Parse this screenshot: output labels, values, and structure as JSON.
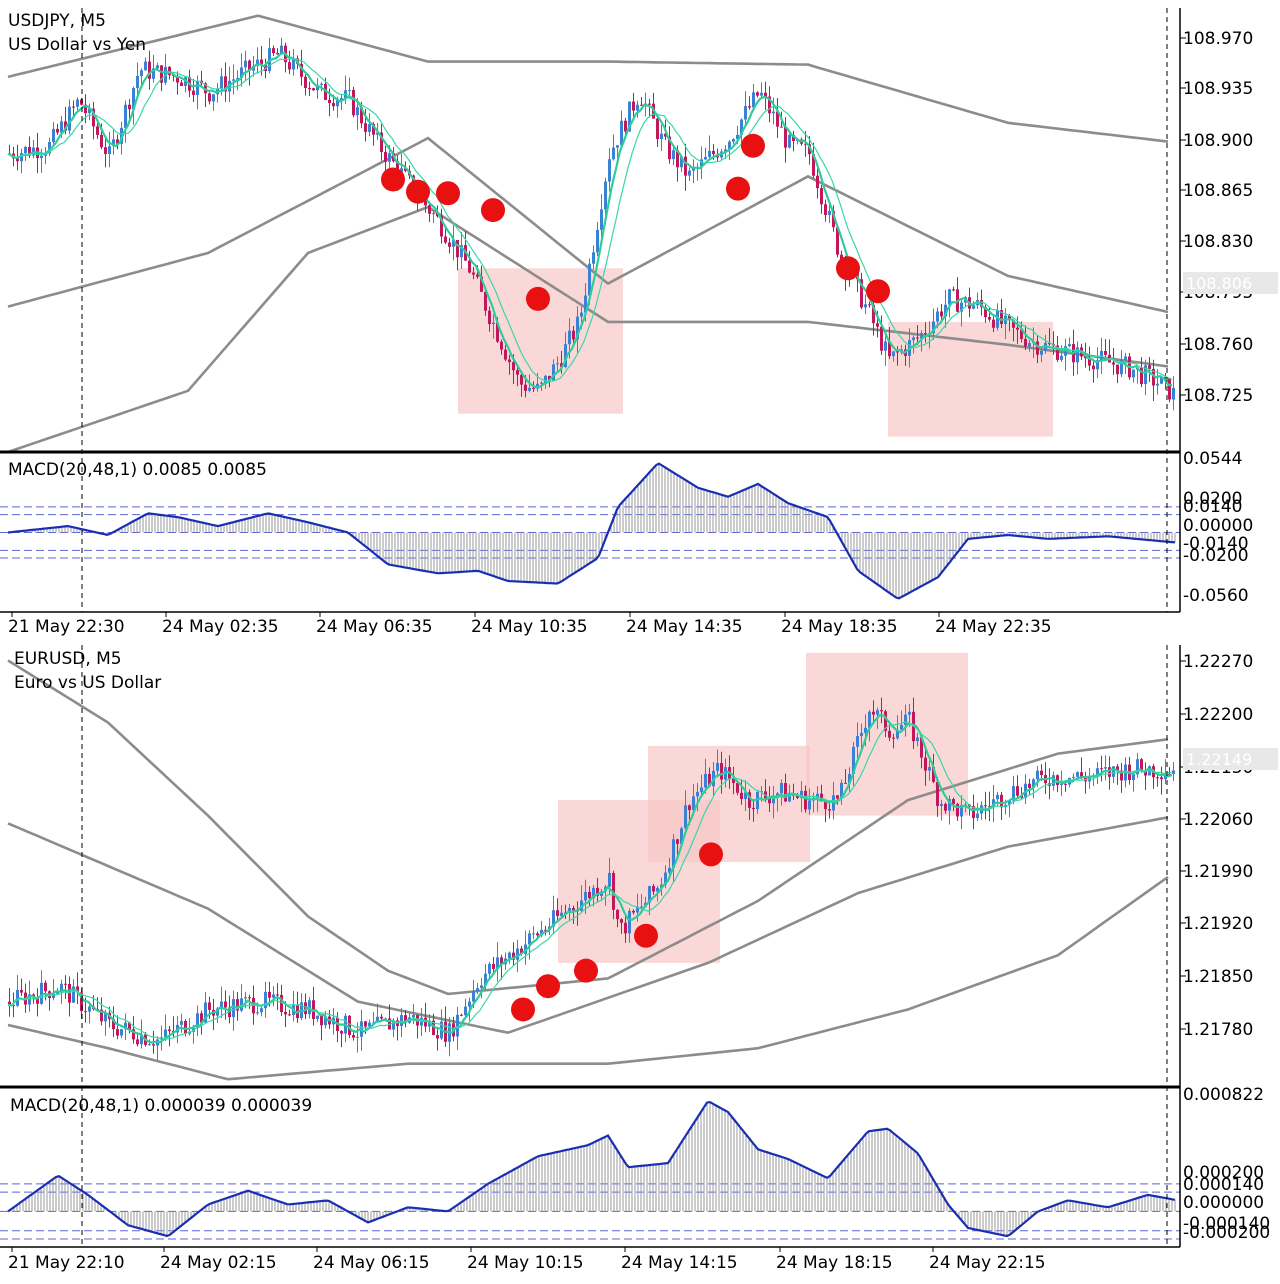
{
  "colors": {
    "bull_candle": "#3a82d6",
    "bear_candle": "#c2185b",
    "ma_fast": "#2ecc9a",
    "ma_slow": "#3ad6a8",
    "envelope": "#8c8c8c",
    "zone_fill": "#f8c8c8",
    "signal_dot": "#e81010",
    "macd_line": "#1a2fb0",
    "macd_hist": "#9a9a9a",
    "level_line": "#5a64d8",
    "axis": "#000000"
  },
  "charts": [
    {
      "id": "usdjpy",
      "symbol_line": "USDJPY, M5",
      "description": "US Dollar vs Yen",
      "price_ticks": [
        "108.970",
        "108.935",
        "108.900",
        "108.865",
        "108.830",
        "108.795",
        "108.760",
        "108.725"
      ],
      "current_price": "108.806",
      "macd_label": "MACD(20,48,1) 0.0085 0.0085",
      "macd_ticks": [
        "0.0544",
        "0.0200",
        "0.0140",
        "0.00000",
        "-0.0140",
        "-0.0200",
        "-0.0560"
      ],
      "time_labels": [
        "21 May 22:30",
        "24 May 02:35",
        "24 May 06:35",
        "24 May 10:35",
        "24 May 14:35",
        "24 May 18:35",
        "24 May 22:35"
      ]
    },
    {
      "id": "eurusd",
      "symbol_line": "EURUSD, M5",
      "description": "Euro vs US Dollar",
      "price_ticks": [
        "1.22270",
        "1.22200",
        "1.22130",
        "1.22060",
        "1.21990",
        "1.21920",
        "1.21850",
        "1.21780"
      ],
      "current_price": "1.22149",
      "macd_label": "MACD(20,48,1) 0.000039 0.000039",
      "macd_ticks": [
        "0.000822",
        "0.000200",
        "0.000140",
        "0.000000",
        "-0.000140",
        "-0.000200"
      ],
      "time_labels": [
        "21 May 22:10",
        "24 May 02:15",
        "24 May 06:15",
        "24 May 10:15",
        "24 May 14:15",
        "24 May 18:15",
        "24 May 22:15"
      ]
    }
  ],
  "chart_data": [
    {
      "type": "candlestick",
      "title": "USDJPY, M5",
      "subtitle": "US Dollar vs Yen",
      "ylim": [
        108.7,
        108.99
      ],
      "x_labels": [
        "21 May 22:30",
        "24 May 02:35",
        "24 May 06:35",
        "24 May 10:35",
        "24 May 14:35",
        "24 May 18:35",
        "24 May 22:35"
      ],
      "close_path": [
        [
          0,
          108.895
        ],
        [
          0.04,
          108.9
        ],
        [
          0.07,
          108.93
        ],
        [
          0.1,
          108.893
        ],
        [
          0.13,
          108.95
        ],
        [
          0.17,
          108.945
        ],
        [
          0.2,
          108.935
        ],
        [
          0.24,
          108.95
        ],
        [
          0.27,
          108.96
        ],
        [
          0.31,
          108.935
        ],
        [
          0.34,
          108.93
        ],
        [
          0.37,
          108.9
        ],
        [
          0.4,
          108.875
        ],
        [
          0.43,
          108.85
        ],
        [
          0.46,
          108.82
        ],
        [
          0.48,
          108.79
        ],
        [
          0.51,
          108.745
        ],
        [
          0.53,
          108.74
        ],
        [
          0.55,
          108.76
        ],
        [
          0.57,
          108.785
        ],
        [
          0.6,
          108.895
        ],
        [
          0.63,
          108.935
        ],
        [
          0.655,
          108.9
        ],
        [
          0.68,
          108.88
        ],
        [
          0.72,
          108.905
        ],
        [
          0.75,
          108.935
        ],
        [
          0.78,
          108.9
        ],
        [
          0.8,
          108.895
        ],
        [
          0.83,
          108.83
        ],
        [
          0.86,
          108.79
        ],
        [
          0.88,
          108.76
        ],
        [
          0.91,
          108.775
        ],
        [
          0.94,
          108.8
        ],
        [
          0.97,
          108.795
        ],
        [
          1.0,
          108.78
        ],
        [
          1.03,
          108.77
        ],
        [
          1.06,
          108.765
        ],
        [
          1.09,
          108.76
        ],
        [
          1.12,
          108.755
        ],
        [
          1.15,
          108.745
        ],
        [
          1.17,
          108.735
        ]
      ],
      "ma_envelope_upper": [
        [
          0,
          108.945
        ],
        [
          0.25,
          108.985
        ],
        [
          0.42,
          108.955
        ],
        [
          0.6,
          108.955
        ],
        [
          0.8,
          108.953
        ],
        [
          1.0,
          108.915
        ],
        [
          1.17,
          108.902
        ]
      ],
      "ma_envelope_mid": [
        [
          0,
          108.795
        ],
        [
          0.2,
          108.83
        ],
        [
          0.42,
          108.905
        ],
        [
          0.6,
          108.81
        ],
        [
          0.8,
          108.88
        ],
        [
          1.0,
          108.815
        ],
        [
          1.17,
          108.79
        ]
      ],
      "ma_envelope_lower": [
        [
          0,
          108.7
        ],
        [
          0.18,
          108.74
        ],
        [
          0.3,
          108.83
        ],
        [
          0.42,
          108.86
        ],
        [
          0.6,
          108.785
        ],
        [
          0.8,
          108.785
        ],
        [
          1.0,
          108.77
        ],
        [
          1.17,
          108.755
        ]
      ],
      "signal_dots": [
        [
          0.385,
          108.878
        ],
        [
          0.41,
          108.87
        ],
        [
          0.44,
          108.869
        ],
        [
          0.485,
          108.858
        ],
        [
          0.53,
          108.8
        ],
        [
          0.73,
          108.872
        ],
        [
          0.745,
          108.9
        ],
        [
          0.84,
          108.82
        ],
        [
          0.87,
          108.805
        ]
      ],
      "zones": [
        [
          0.45,
          0.615,
          108.82,
          108.725
        ],
        [
          0.88,
          1.045,
          108.785,
          108.71
        ]
      ],
      "macd": {
        "label": "MACD(20,48,1) 0.0085 0.0085",
        "ylim": [
          -0.056,
          0.0544
        ],
        "levels": [
          0.02,
          0.014,
          0.0,
          -0.014,
          -0.02
        ],
        "values": [
          [
            0,
            0.0
          ],
          [
            0.06,
            0.005
          ],
          [
            0.1,
            -0.002
          ],
          [
            0.14,
            0.015
          ],
          [
            0.17,
            0.012
          ],
          [
            0.21,
            0.005
          ],
          [
            0.26,
            0.015
          ],
          [
            0.3,
            0.008
          ],
          [
            0.34,
            0.0
          ],
          [
            0.38,
            -0.025
          ],
          [
            0.43,
            -0.032
          ],
          [
            0.47,
            -0.03
          ],
          [
            0.5,
            -0.038
          ],
          [
            0.55,
            -0.04
          ],
          [
            0.59,
            -0.02
          ],
          [
            0.61,
            0.02
          ],
          [
            0.65,
            0.0544
          ],
          [
            0.69,
            0.035
          ],
          [
            0.72,
            0.028
          ],
          [
            0.75,
            0.038
          ],
          [
            0.78,
            0.023
          ],
          [
            0.82,
            0.012
          ],
          [
            0.85,
            -0.03
          ],
          [
            0.89,
            -0.052
          ],
          [
            0.93,
            -0.035
          ],
          [
            0.96,
            -0.005
          ],
          [
            1.0,
            -0.002
          ],
          [
            1.04,
            -0.005
          ],
          [
            1.1,
            -0.003
          ],
          [
            1.17,
            -0.008
          ]
        ]
      }
    },
    {
      "type": "candlestick",
      "title": "EURUSD, M5",
      "subtitle": "Euro vs US Dollar",
      "ylim": [
        1.2173,
        1.223
      ],
      "x_labels": [
        "21 May 22:10",
        "24 May 02:15",
        "24 May 06:15",
        "24 May 10:15",
        "24 May 14:15",
        "24 May 18:15",
        "24 May 22:15"
      ],
      "close_path": [
        [
          0,
          1.2184
        ],
        [
          0.05,
          1.2186
        ],
        [
          0.1,
          1.2181
        ],
        [
          0.15,
          1.2179
        ],
        [
          0.2,
          1.2183
        ],
        [
          0.25,
          1.2184
        ],
        [
          0.3,
          1.2183
        ],
        [
          0.35,
          1.218
        ],
        [
          0.4,
          1.2182
        ],
        [
          0.44,
          1.218
        ],
        [
          0.47,
          1.2187
        ],
        [
          0.5,
          1.219
        ],
        [
          0.53,
          1.2193
        ],
        [
          0.56,
          1.2196
        ],
        [
          0.6,
          1.22
        ],
        [
          0.61,
          1.2193
        ],
        [
          0.63,
          1.2196
        ],
        [
          0.65,
          1.2199
        ],
        [
          0.68,
          1.221
        ],
        [
          0.71,
          1.2214
        ],
        [
          0.74,
          1.221
        ],
        [
          0.77,
          1.2211
        ],
        [
          0.8,
          1.221
        ],
        [
          0.83,
          1.221
        ],
        [
          0.86,
          1.2222
        ],
        [
          0.88,
          1.2219
        ],
        [
          0.9,
          1.222
        ],
        [
          0.93,
          1.221
        ],
        [
          0.96,
          1.2208
        ],
        [
          1.0,
          1.2211
        ],
        [
          1.04,
          1.2213
        ],
        [
          1.08,
          1.2213
        ],
        [
          1.12,
          1.2214
        ],
        [
          1.17,
          1.2214
        ]
      ],
      "ma_envelope_upper": [
        [
          0,
          1.2228
        ],
        [
          0.1,
          1.222
        ],
        [
          0.2,
          1.2208
        ],
        [
          0.3,
          1.2195
        ],
        [
          0.38,
          1.2188
        ],
        [
          0.44,
          1.2185
        ],
        [
          0.6,
          1.2187
        ],
        [
          0.75,
          1.2197
        ],
        [
          0.9,
          1.221
        ],
        [
          1.05,
          1.2216
        ],
        [
          1.17,
          1.2218
        ]
      ],
      "ma_envelope_mid": [
        [
          0,
          1.2207
        ],
        [
          0.2,
          1.2196
        ],
        [
          0.35,
          1.2184
        ],
        [
          0.5,
          1.218
        ],
        [
          0.7,
          1.2189
        ],
        [
          0.85,
          1.2198
        ],
        [
          1.0,
          1.2204
        ],
        [
          1.17,
          1.2208
        ]
      ],
      "ma_envelope_lower": [
        [
          0,
          1.2181
        ],
        [
          0.1,
          1.2178
        ],
        [
          0.22,
          1.2174
        ],
        [
          0.4,
          1.2176
        ],
        [
          0.6,
          1.2176
        ],
        [
          0.75,
          1.2178
        ],
        [
          0.9,
          1.2183
        ],
        [
          1.05,
          1.219
        ],
        [
          1.17,
          1.2201
        ]
      ],
      "signal_dots": [
        [
          0.515,
          1.2183
        ],
        [
          0.54,
          1.2186
        ],
        [
          0.578,
          1.2188
        ],
        [
          0.638,
          1.21925
        ],
        [
          0.703,
          1.2203
        ]
      ],
      "zones": [
        [
          0.55,
          0.712,
          1.221,
          1.2189
        ],
        [
          0.64,
          0.802,
          1.2217,
          1.2202
        ],
        [
          0.798,
          0.96,
          1.2229,
          1.2208
        ]
      ],
      "macd": {
        "label": "MACD(20,48,1) 0.000039 0.000039",
        "ylim": [
          -0.0002,
          0.000822
        ],
        "levels": [
          0.0002,
          0.00014,
          0.0,
          -0.00014,
          -0.0002
        ],
        "values": [
          [
            0,
            0.0
          ],
          [
            0.05,
            0.00026
          ],
          [
            0.08,
            0.00012
          ],
          [
            0.12,
            -0.0001
          ],
          [
            0.16,
            -0.00018
          ],
          [
            0.2,
            5e-05
          ],
          [
            0.24,
            0.00015
          ],
          [
            0.28,
            5e-05
          ],
          [
            0.32,
            8e-05
          ],
          [
            0.36,
            -8e-05
          ],
          [
            0.4,
            3e-05
          ],
          [
            0.44,
            0.0
          ],
          [
            0.48,
            0.0002
          ],
          [
            0.53,
            0.0004
          ],
          [
            0.58,
            0.00048
          ],
          [
            0.6,
            0.00055
          ],
          [
            0.62,
            0.00032
          ],
          [
            0.66,
            0.00035
          ],
          [
            0.7,
            0.0008
          ],
          [
            0.72,
            0.00072
          ],
          [
            0.75,
            0.00045
          ],
          [
            0.78,
            0.00038
          ],
          [
            0.82,
            0.00024
          ],
          [
            0.86,
            0.00058
          ],
          [
            0.88,
            0.0006
          ],
          [
            0.91,
            0.00042
          ],
          [
            0.94,
            5e-05
          ],
          [
            0.96,
            -0.00012
          ],
          [
            1.0,
            -0.00018
          ],
          [
            1.03,
            0.0
          ],
          [
            1.06,
            8e-05
          ],
          [
            1.1,
            3e-05
          ],
          [
            1.14,
            0.00012
          ],
          [
            1.17,
            8e-05
          ]
        ]
      }
    }
  ]
}
